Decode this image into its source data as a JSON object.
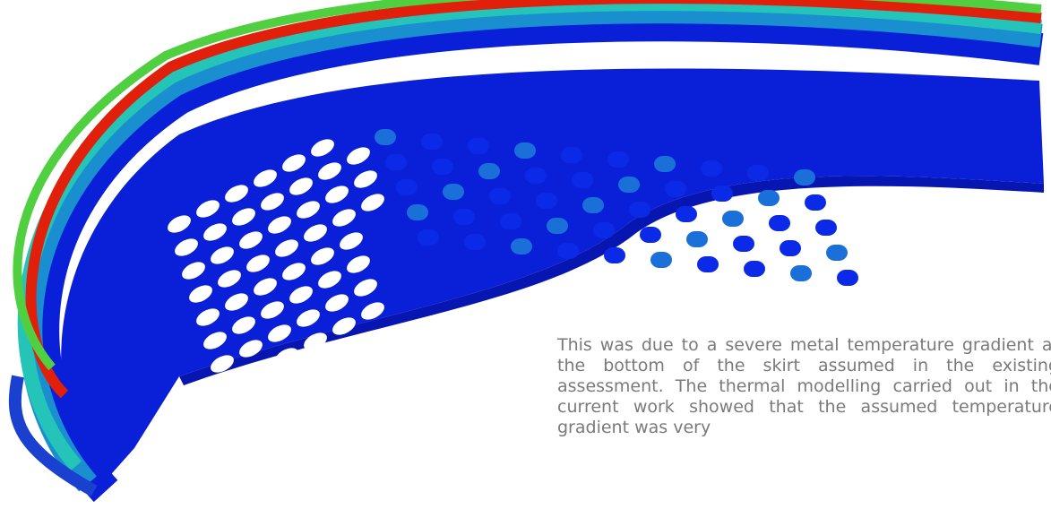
{
  "paragraph": {
    "text": "This was due to a severe metal temperature gradient at the bottom of the skirt assumed in the existing assessment. The thermal modelling carried out in the current work showed that the assumed temperature gradient was very"
  }
}
